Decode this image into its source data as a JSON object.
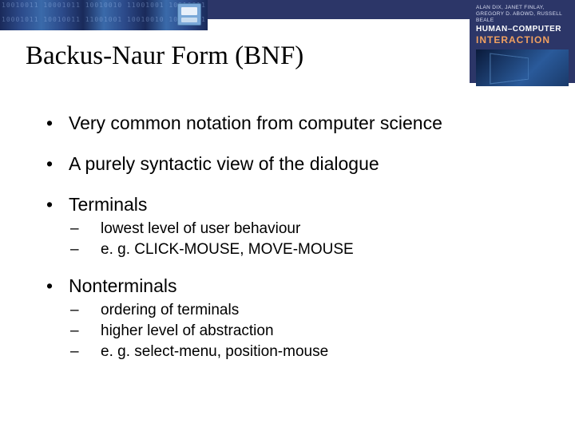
{
  "colors": {
    "header_bar": "#2c3668",
    "book_bg": "#2c3668",
    "book_accent": "#f0a060",
    "background": "#ffffff",
    "text": "#000000"
  },
  "typography": {
    "title_font": "Comic Sans MS",
    "title_size_pt": 33,
    "body_font": "Verdana",
    "level1_size_pt": 23,
    "level2_size_pt": 19
  },
  "book": {
    "authors": "ALAN DIX, JANET FINLAY, GREGORY D. ABOWD, RUSSELL BEALE",
    "title_line1": "HUMAN–COMPUTER",
    "title_line2": "INTERACTION"
  },
  "slide": {
    "title": "Backus-Naur Form (BNF)",
    "bullets": [
      {
        "text": "Very common notation from computer science",
        "sub": []
      },
      {
        "text": "A purely syntactic view of the dialogue",
        "sub": []
      },
      {
        "text": "Terminals",
        "sub": [
          "lowest level of user behaviour",
          "e. g. CLICK-MOUSE, MOVE-MOUSE"
        ]
      },
      {
        "text": "Nonterminals",
        "sub": [
          "ordering of terminals",
          "higher level of abstraction",
          "e. g. select-menu, position-mouse"
        ]
      }
    ]
  }
}
